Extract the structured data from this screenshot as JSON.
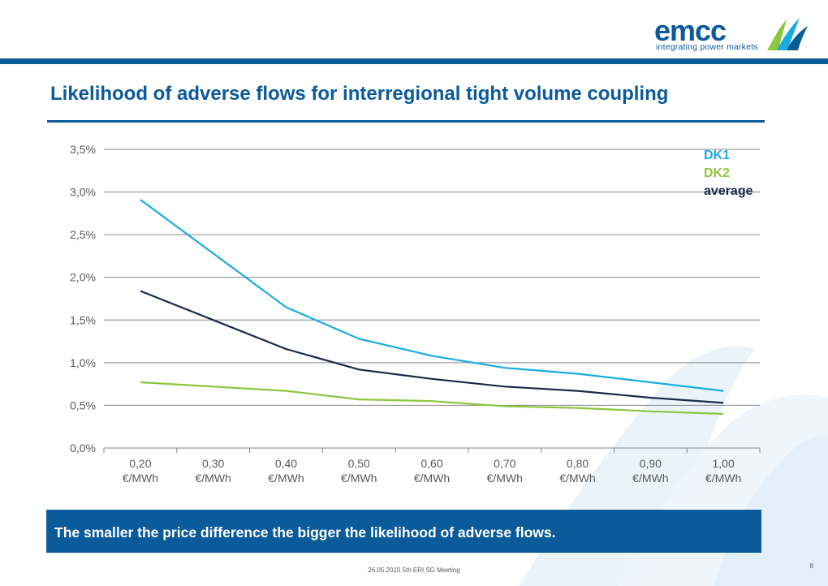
{
  "header": {
    "logo_text": "emcc",
    "logo_tagline": "integrating power markets",
    "title": "Likelihood of adverse flows for interregional tight volume coupling"
  },
  "banner": {
    "text": "The smaller the price difference the bigger the likelihood of adverse flows."
  },
  "footer": {
    "text": "26.05.2010 5th ERI SG Meeting",
    "page": "8"
  },
  "colors": {
    "brand_blue": "#0b5a99",
    "dk1": "#1aabe0",
    "dk2": "#8cc63f",
    "average": "#1c2a4a"
  },
  "chart_data": {
    "type": "line",
    "categories": [
      "0,20 €/MWh",
      "0,30 €/MWh",
      "0,40 €/MWh",
      "0,50 €/MWh",
      "0,60 €/MWh",
      "0,70 €/MWh",
      "0,80 €/MWh",
      "0,90 €/MWh",
      "1,00 €/MWh"
    ],
    "category_lines": [
      [
        "0,20",
        "€/MWh"
      ],
      [
        "0,30",
        "€/MWh"
      ],
      [
        "0,40",
        "€/MWh"
      ],
      [
        "0,50",
        "€/MWh"
      ],
      [
        "0,60",
        "€/MWh"
      ],
      [
        "0,70",
        "€/MWh"
      ],
      [
        "0,80",
        "€/MWh"
      ],
      [
        "0,90",
        "€/MWh"
      ],
      [
        "1,00",
        "€/MWh"
      ]
    ],
    "y_ticks": [
      0.0,
      0.5,
      1.0,
      1.5,
      2.0,
      2.5,
      3.0,
      3.5
    ],
    "y_tick_labels": [
      "0,0%",
      "0,5%",
      "1,0%",
      "1,5%",
      "2,0%",
      "2,5%",
      "3,0%",
      "3,5%"
    ],
    "ylim": [
      0,
      3.5
    ],
    "y_unit": "%",
    "grid": true,
    "legend_position": "top-right",
    "series": [
      {
        "name": "DK1",
        "color": "#1aabe0",
        "values": [
          2.91,
          2.28,
          1.65,
          1.28,
          1.08,
          0.94,
          0.87,
          0.77,
          0.67
        ]
      },
      {
        "name": "DK2",
        "color": "#8cc63f",
        "values": [
          0.77,
          0.72,
          0.67,
          0.57,
          0.55,
          0.49,
          0.47,
          0.43,
          0.4
        ]
      },
      {
        "name": "average",
        "color": "#1c2a4a",
        "values": [
          1.84,
          1.5,
          1.16,
          0.92,
          0.81,
          0.72,
          0.67,
          0.59,
          0.53
        ]
      }
    ]
  }
}
